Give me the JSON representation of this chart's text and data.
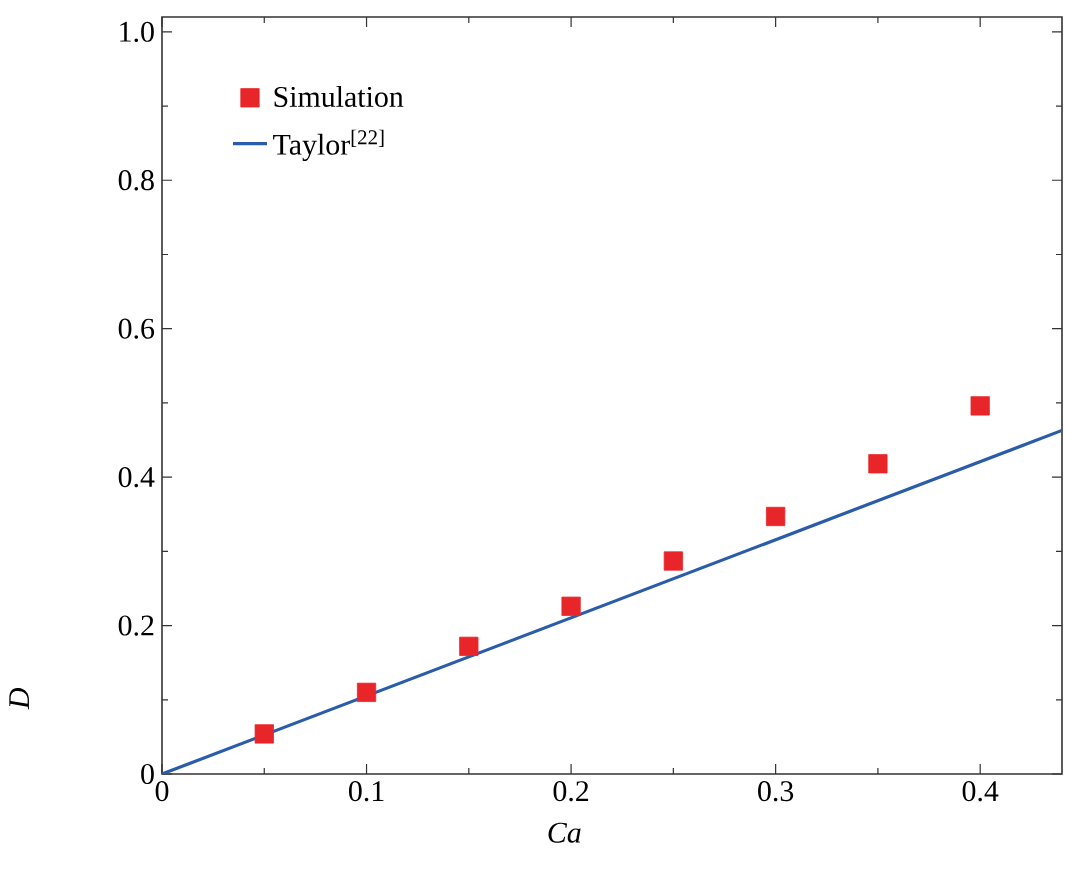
{
  "chart_data": {
    "type": "scatter",
    "xlabel": "Ca",
    "ylabel": "D",
    "xlim": [
      0,
      0.44
    ],
    "ylim": [
      0,
      1.02
    ],
    "xticks": [
      0,
      {
        "value": 0.05,
        "label": null
      },
      0.1,
      {
        "value": 0.15,
        "label": null
      },
      0.2,
      {
        "value": 0.25,
        "label": null
      },
      0.3,
      {
        "value": 0.35,
        "label": null
      },
      0.4
    ],
    "yticks": [
      0,
      {
        "value": 0.1,
        "label": null
      },
      0.2,
      {
        "value": 0.3,
        "label": null
      },
      0.4,
      {
        "value": 0.5,
        "label": null
      },
      0.6,
      {
        "value": 0.7,
        "label": null
      },
      0.8,
      {
        "value": 0.9,
        "label": null
      },
      {
        "value": 1,
        "label": "1.0"
      }
    ],
    "legend": "top left",
    "grid": false,
    "series": [
      {
        "name": "Simulation",
        "marker": "square",
        "color": "#e8262a",
        "x": [
          0.05,
          0.1,
          0.15,
          0.2,
          0.25,
          0.3,
          0.35,
          0.4
        ],
        "values": [
          0.054,
          0.11,
          0.172,
          0.226,
          0.287,
          0.347,
          0.418,
          0.496
        ]
      },
      {
        "name": "Taylor$^{[22]}$",
        "type": "line",
        "marker": "none",
        "color": "#2a5caa",
        "x": [
          0,
          0.44
        ],
        "values": [
          0,
          0.463
        ]
      }
    ]
  }
}
